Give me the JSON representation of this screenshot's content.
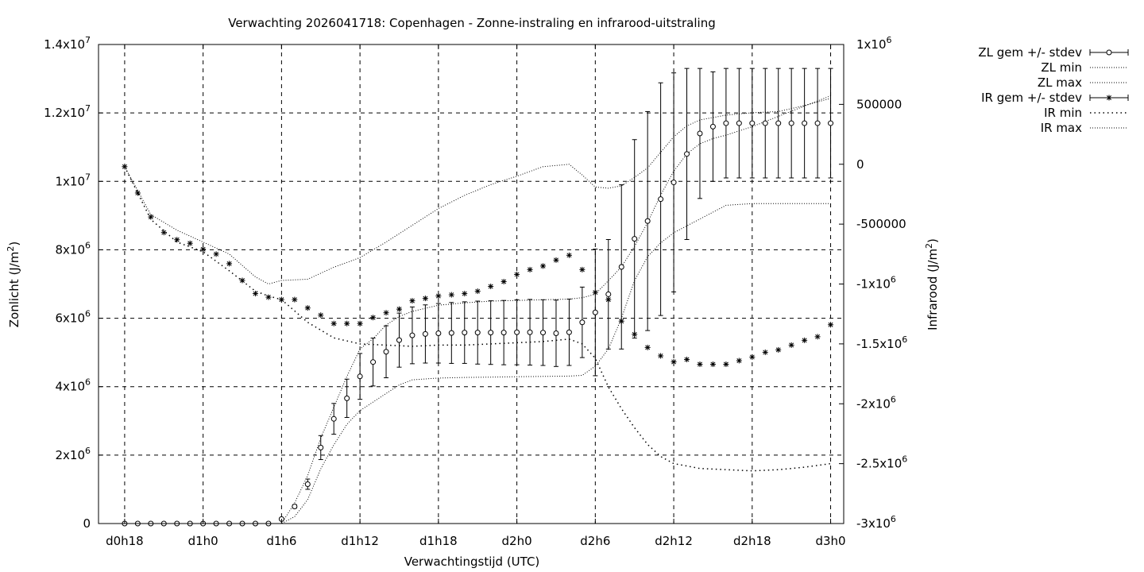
{
  "chart_data": {
    "type": "line",
    "title": "Verwachting 2026041718: Copenhagen - Zonne-instraling en infrarood-uitstraling",
    "xlabel": "Verwachtingstijd (UTC)",
    "ylabel": "Zonlicht (J/m2)",
    "y2label": "Infrarood (J/m2)",
    "x_unit": "hours since d0h18 (index)",
    "xlim": [
      -2,
      55
    ],
    "ylim": [
      0,
      14000000
    ],
    "y2lim": [
      -3000000,
      1000000
    ],
    "grid": true,
    "legend_position": "outside-right",
    "x_ticks": [
      {
        "x": 0,
        "label": "d0h18"
      },
      {
        "x": 6,
        "label": "d1h0"
      },
      {
        "x": 12,
        "label": "d1h6"
      },
      {
        "x": 18,
        "label": "d1h12"
      },
      {
        "x": 24,
        "label": "d1h18"
      },
      {
        "x": 30,
        "label": "d2h0"
      },
      {
        "x": 36,
        "label": "d2h6"
      },
      {
        "x": 42,
        "label": "d2h12"
      },
      {
        "x": 48,
        "label": "d2h18"
      },
      {
        "x": 54,
        "label": "d3h0"
      }
    ],
    "y_ticks": [
      {
        "v": 0,
        "label": "0"
      },
      {
        "v": 2000000,
        "label": "2x10",
        "sup": "6"
      },
      {
        "v": 4000000,
        "label": "4x10",
        "sup": "6"
      },
      {
        "v": 6000000,
        "label": "6x10",
        "sup": "6"
      },
      {
        "v": 8000000,
        "label": "8x10",
        "sup": "6"
      },
      {
        "v": 10000000,
        "label": "1x10",
        "sup": "7"
      },
      {
        "v": 12000000,
        "label": "1.2x10",
        "sup": "7"
      },
      {
        "v": 14000000,
        "label": "1.4x10",
        "sup": "7"
      }
    ],
    "y2_ticks": [
      {
        "v": 1000000,
        "label": "1x10",
        "sup": "6"
      },
      {
        "v": 500000,
        "label": "500000"
      },
      {
        "v": 0,
        "label": "0"
      },
      {
        "v": -500000,
        "label": "-500000"
      },
      {
        "v": -1000000,
        "label": "-1x10",
        "sup": "6"
      },
      {
        "v": -1500000,
        "label": "-1.5x10",
        "sup": "6"
      },
      {
        "v": -2000000,
        "label": "-2x10",
        "sup": "6"
      },
      {
        "v": -2500000,
        "label": "-2.5x10",
        "sup": "6"
      },
      {
        "v": -3000000,
        "label": "-3x10",
        "sup": "6"
      }
    ],
    "series": [
      {
        "name": "ZL gem +/- stdev",
        "axis": "y",
        "style": "errorbar-circle",
        "x": [
          0,
          1,
          2,
          3,
          4,
          5,
          6,
          7,
          8,
          9,
          10,
          11,
          12,
          13,
          14,
          15,
          16,
          17,
          18,
          19,
          20,
          21,
          22,
          23,
          24,
          25,
          26,
          27,
          28,
          29,
          30,
          31,
          32,
          33,
          34,
          35,
          36,
          37,
          38,
          39,
          40,
          41,
          42,
          43,
          44,
          45,
          46,
          47,
          48,
          49,
          50,
          51,
          52,
          53,
          54
        ],
        "values": [
          0,
          0,
          0,
          0,
          0,
          0,
          0,
          0,
          0,
          0,
          0,
          0,
          130000,
          500000,
          1150000,
          2220000,
          3060000,
          3660000,
          4300000,
          4720000,
          5020000,
          5360000,
          5500000,
          5540000,
          5560000,
          5570000,
          5580000,
          5580000,
          5580000,
          5580000,
          5590000,
          5590000,
          5580000,
          5560000,
          5590000,
          5880000,
          6170000,
          6700000,
          7500000,
          8320000,
          8840000,
          9480000,
          9970000,
          10800000,
          11400000,
          11600000,
          11700000,
          11700000,
          11700000,
          11700000,
          11700000,
          11700000,
          11700000,
          11700000,
          11700000
        ],
        "err": [
          0,
          0,
          0,
          0,
          0,
          0,
          0,
          0,
          0,
          0,
          0,
          0,
          30000,
          50000,
          150000,
          350000,
          450000,
          560000,
          670000,
          700000,
          760000,
          790000,
          830000,
          850000,
          870000,
          890000,
          900000,
          920000,
          930000,
          940000,
          950000,
          960000,
          960000,
          970000,
          970000,
          1030000,
          1850000,
          1600000,
          2400000,
          2900000,
          3200000,
          3400000,
          3200000,
          2500000,
          1900000,
          1600000,
          1600000,
          1600000,
          1600000,
          1600000,
          1600000,
          1600000,
          1600000,
          1600000,
          1600000
        ]
      },
      {
        "name": "ZL min",
        "axis": "y",
        "style": "dotted",
        "x": [
          0,
          6,
          11,
          12,
          13,
          14,
          15,
          16,
          17,
          18,
          19,
          20,
          21,
          22,
          24,
          26,
          28,
          30,
          32,
          34,
          35,
          36,
          37,
          38,
          39,
          40,
          41,
          42,
          44,
          46,
          48,
          50,
          52,
          54
        ],
        "values": [
          0,
          0,
          0,
          0,
          200000,
          700000,
          1600000,
          2300000,
          2900000,
          3300000,
          3550000,
          3800000,
          4050000,
          4200000,
          4250000,
          4270000,
          4280000,
          4290000,
          4300000,
          4310000,
          4330000,
          4600000,
          5100000,
          6000000,
          7100000,
          7800000,
          8200000,
          8500000,
          8900000,
          9300000,
          9350000,
          9350000,
          9350000,
          9350000
        ]
      },
      {
        "name": "ZL max",
        "axis": "y",
        "style": "dotted",
        "x": [
          0,
          6,
          11,
          12,
          13,
          14,
          15,
          16,
          17,
          18,
          19,
          20,
          21,
          22,
          24,
          26,
          28,
          30,
          32,
          34,
          35,
          36,
          37,
          38,
          39,
          40,
          41,
          42,
          43,
          44,
          45,
          46,
          48,
          50,
          52,
          54
        ],
        "values": [
          0,
          0,
          0,
          0,
          600000,
          1400000,
          2500000,
          3400000,
          4300000,
          5100000,
          5400000,
          5800000,
          6050000,
          6200000,
          6380000,
          6450000,
          6500000,
          6520000,
          6540000,
          6560000,
          6600000,
          6700000,
          7100000,
          7500000,
          8100000,
          8800000,
          9600000,
          10300000,
          10800000,
          11100000,
          11250000,
          11350000,
          11600000,
          11900000,
          12200000,
          12500000
        ]
      },
      {
        "name": "IR gem +/- stdev",
        "axis": "y2",
        "style": "errorbar-star",
        "x": [
          0,
          1,
          2,
          3,
          4,
          5,
          6,
          7,
          8,
          9,
          10,
          11,
          12,
          13,
          14,
          15,
          16,
          17,
          18,
          19,
          20,
          21,
          22,
          23,
          24,
          25,
          26,
          27,
          28,
          29,
          30,
          31,
          32,
          33,
          34,
          35,
          36,
          37,
          38,
          39,
          40,
          41,
          42,
          43,
          44,
          45,
          46,
          47,
          48,
          49,
          50,
          51,
          52,
          53,
          54
        ],
        "values": [
          -20000,
          -240000,
          -440000,
          -570000,
          -630000,
          -660000,
          -710000,
          -750000,
          -830000,
          -970000,
          -1080000,
          -1110000,
          -1130000,
          -1130000,
          -1200000,
          -1260000,
          -1330000,
          -1330000,
          -1330000,
          -1280000,
          -1240000,
          -1210000,
          -1140000,
          -1120000,
          -1100000,
          -1090000,
          -1080000,
          -1060000,
          -1020000,
          -980000,
          -920000,
          -880000,
          -850000,
          -800000,
          -760000,
          -880000,
          -1070000,
          -1130000,
          -1310000,
          -1420000,
          -1530000,
          -1600000,
          -1650000,
          -1630000,
          -1670000,
          -1670000,
          -1670000,
          -1640000,
          -1610000,
          -1570000,
          -1550000,
          -1510000,
          -1470000,
          -1440000,
          -1340000
        ]
      },
      {
        "name": "IR min",
        "axis": "y2",
        "style": "dotted-sparse",
        "x": [
          0,
          2,
          4,
          6,
          8,
          10,
          11,
          12,
          14,
          16,
          18,
          20,
          22,
          24,
          26,
          28,
          30,
          32,
          34,
          35,
          36,
          37,
          38,
          39,
          40,
          41,
          42,
          43,
          44,
          46,
          48,
          50,
          52,
          54
        ],
        "values": [
          -20000,
          -460000,
          -650000,
          -730000,
          -890000,
          -1060000,
          -1100000,
          -1130000,
          -1320000,
          -1450000,
          -1500000,
          -1510000,
          -1520000,
          -1510000,
          -1510000,
          -1500000,
          -1490000,
          -1480000,
          -1460000,
          -1500000,
          -1620000,
          -1860000,
          -2040000,
          -2200000,
          -2340000,
          -2440000,
          -2500000,
          -2520000,
          -2540000,
          -2550000,
          -2560000,
          -2550000,
          -2530000,
          -2500000
        ]
      },
      {
        "name": "IR max",
        "axis": "y2",
        "style": "dotted",
        "x": [
          0,
          2,
          4,
          6,
          8,
          10,
          11,
          12,
          14,
          16,
          18,
          20,
          22,
          24,
          26,
          28,
          30,
          32,
          34,
          35,
          36,
          37,
          38,
          39,
          40,
          41,
          42,
          43,
          44,
          46,
          48,
          50,
          52,
          54
        ],
        "values": [
          -20000,
          -420000,
          -550000,
          -650000,
          -750000,
          -940000,
          -1000000,
          -970000,
          -960000,
          -860000,
          -780000,
          -650000,
          -510000,
          -370000,
          -260000,
          -170000,
          -100000,
          -20000,
          0,
          -90000,
          -190000,
          -200000,
          -180000,
          -110000,
          -30000,
          100000,
          230000,
          320000,
          370000,
          410000,
          430000,
          440000,
          490000,
          550000
        ]
      }
    ]
  }
}
